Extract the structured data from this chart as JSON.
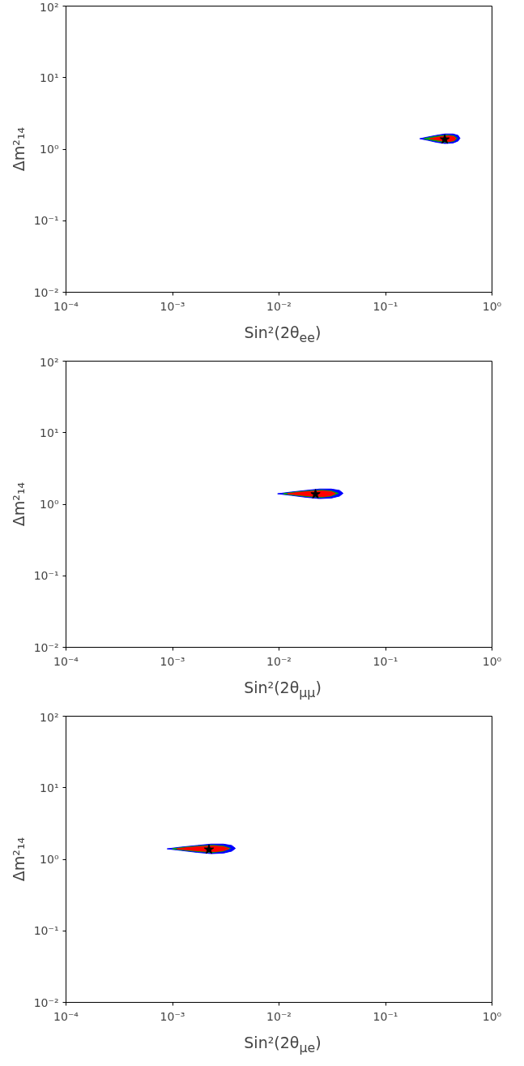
{
  "chart_data": [
    {
      "type": "area",
      "xlabel": "Sin²(2θ$_{ee}$)",
      "ylabel": "Δm²₁₄",
      "log": "xy",
      "xlim": [
        0.0001,
        1
      ],
      "ylim": [
        0.01,
        100
      ],
      "xticks": [
        {
          "value": 0.0001,
          "label": "10⁻⁴"
        },
        {
          "value": 0.001,
          "label": "10⁻³"
        },
        {
          "value": 0.01,
          "label": "10⁻²"
        },
        {
          "value": 0.1,
          "label": "10⁻¹"
        },
        {
          "value": 1,
          "label": "10⁰"
        }
      ],
      "yticks": [
        {
          "value": 0.01,
          "label": "10⁻²"
        },
        {
          "value": 0.1,
          "label": "10⁻¹"
        },
        {
          "value": 1,
          "label": "10⁰"
        },
        {
          "value": 10,
          "label": "10¹"
        },
        {
          "value": 100,
          "label": "10²"
        }
      ],
      "series": [
        {
          "color": "#0000ff",
          "x": [
            0.21,
            0.25,
            0.3,
            0.36,
            0.43,
            0.48,
            0.5,
            0.48,
            0.43,
            0.36,
            0.3,
            0.25,
            0.21
          ],
          "values": [
            1.4,
            1.48,
            1.56,
            1.63,
            1.63,
            1.56,
            1.42,
            1.3,
            1.22,
            1.2,
            1.25,
            1.33,
            1.4
          ]
        },
        {
          "color": "#00b000",
          "x": [
            0.23,
            0.27,
            0.32,
            0.38,
            0.44,
            0.47,
            0.44,
            0.38,
            0.32,
            0.27,
            0.23
          ],
          "values": [
            1.4,
            1.47,
            1.53,
            1.57,
            1.53,
            1.42,
            1.3,
            1.25,
            1.28,
            1.34,
            1.4
          ]
        },
        {
          "color": "#ff0000",
          "x": [
            0.26,
            0.3,
            0.35,
            0.4,
            0.44,
            0.46,
            0.44,
            0.4,
            0.35,
            0.3,
            0.26
          ],
          "values": [
            1.4,
            1.46,
            1.51,
            1.53,
            1.5,
            1.41,
            1.32,
            1.28,
            1.3,
            1.35,
            1.4
          ]
        },
        {
          "type": "scatter",
          "marker": "star",
          "color": "#000000",
          "x": [
            0.36
          ],
          "values": [
            1.37
          ]
        }
      ]
    },
    {
      "type": "area",
      "xlabel": "Sin²(2θ$_{μμ}$)",
      "ylabel": "Δm²₁₄",
      "log": "xy",
      "xlim": [
        0.0001,
        1
      ],
      "ylim": [
        0.01,
        100
      ],
      "xticks": [
        {
          "value": 0.0001,
          "label": "10⁻⁴"
        },
        {
          "value": 0.001,
          "label": "10⁻³"
        },
        {
          "value": 0.01,
          "label": "10⁻²"
        },
        {
          "value": 0.1,
          "label": "10⁻¹"
        },
        {
          "value": 1,
          "label": "10⁰"
        }
      ],
      "yticks": [
        {
          "value": 0.01,
          "label": "10⁻²"
        },
        {
          "value": 0.1,
          "label": "10⁻¹"
        },
        {
          "value": 1,
          "label": "10⁰"
        },
        {
          "value": 10,
          "label": "10¹"
        },
        {
          "value": 100,
          "label": "10²"
        }
      ],
      "series": [
        {
          "color": "#0000ff",
          "x": [
            0.0097,
            0.013,
            0.018,
            0.024,
            0.031,
            0.037,
            0.04,
            0.037,
            0.031,
            0.024,
            0.018,
            0.013,
            0.0097
          ],
          "values": [
            1.4,
            1.48,
            1.56,
            1.63,
            1.63,
            1.56,
            1.42,
            1.3,
            1.22,
            1.2,
            1.25,
            1.33,
            1.4
          ]
        },
        {
          "color": "#00b000",
          "x": [
            0.011,
            0.014,
            0.019,
            0.025,
            0.031,
            0.036,
            0.031,
            0.025,
            0.019,
            0.014,
            0.011
          ],
          "values": [
            1.4,
            1.47,
            1.53,
            1.57,
            1.53,
            1.42,
            1.3,
            1.25,
            1.28,
            1.34,
            1.4
          ]
        },
        {
          "color": "#ff0000",
          "x": [
            0.012,
            0.015,
            0.02,
            0.026,
            0.031,
            0.034,
            0.031,
            0.026,
            0.02,
            0.015,
            0.012
          ],
          "values": [
            1.4,
            1.46,
            1.51,
            1.53,
            1.5,
            1.41,
            1.32,
            1.28,
            1.3,
            1.35,
            1.4
          ]
        },
        {
          "type": "scatter",
          "marker": "star",
          "color": "#000000",
          "x": [
            0.022
          ],
          "values": [
            1.38
          ]
        }
      ]
    },
    {
      "type": "area",
      "xlabel": "Sin²(2θ$_{μe}$)",
      "ylabel": "Δm²₁₄",
      "log": "xy",
      "xlim": [
        0.0001,
        1
      ],
      "ylim": [
        0.01,
        100
      ],
      "xticks": [
        {
          "value": 0.0001,
          "label": "10⁻⁴"
        },
        {
          "value": 0.001,
          "label": "10⁻³"
        },
        {
          "value": 0.01,
          "label": "10⁻²"
        },
        {
          "value": 0.1,
          "label": "10⁻¹"
        },
        {
          "value": 1,
          "label": "10⁰"
        }
      ],
      "yticks": [
        {
          "value": 0.01,
          "label": "10⁻²"
        },
        {
          "value": 0.1,
          "label": "10⁻¹"
        },
        {
          "value": 1,
          "label": "10⁰"
        },
        {
          "value": 10,
          "label": "10¹"
        },
        {
          "value": 100,
          "label": "10²"
        }
      ],
      "series": [
        {
          "color": "#0000ff",
          "x": [
            0.00089,
            0.0012,
            0.0017,
            0.0023,
            0.003,
            0.0036,
            0.0039,
            0.0036,
            0.003,
            0.0023,
            0.0017,
            0.0012,
            0.00089
          ],
          "values": [
            1.4,
            1.48,
            1.56,
            1.63,
            1.63,
            1.56,
            1.42,
            1.3,
            1.22,
            1.2,
            1.25,
            1.33,
            1.4
          ]
        },
        {
          "color": "#00b000",
          "x": [
            0.001,
            0.0013,
            0.0018,
            0.0024,
            0.003,
            0.0035,
            0.003,
            0.0024,
            0.0018,
            0.0013,
            0.001
          ],
          "values": [
            1.4,
            1.47,
            1.53,
            1.57,
            1.53,
            1.42,
            1.3,
            1.25,
            1.28,
            1.34,
            1.4
          ]
        },
        {
          "color": "#ff0000",
          "x": [
            0.0011,
            0.0014,
            0.0019,
            0.0025,
            0.003,
            0.0034,
            0.003,
            0.0025,
            0.0019,
            0.0014,
            0.0011
          ],
          "values": [
            1.4,
            1.46,
            1.51,
            1.53,
            1.5,
            1.41,
            1.32,
            1.28,
            1.3,
            1.35,
            1.4
          ]
        },
        {
          "type": "scatter",
          "marker": "star",
          "color": "#000000",
          "x": [
            0.0022
          ],
          "values": [
            1.37
          ]
        }
      ]
    }
  ]
}
